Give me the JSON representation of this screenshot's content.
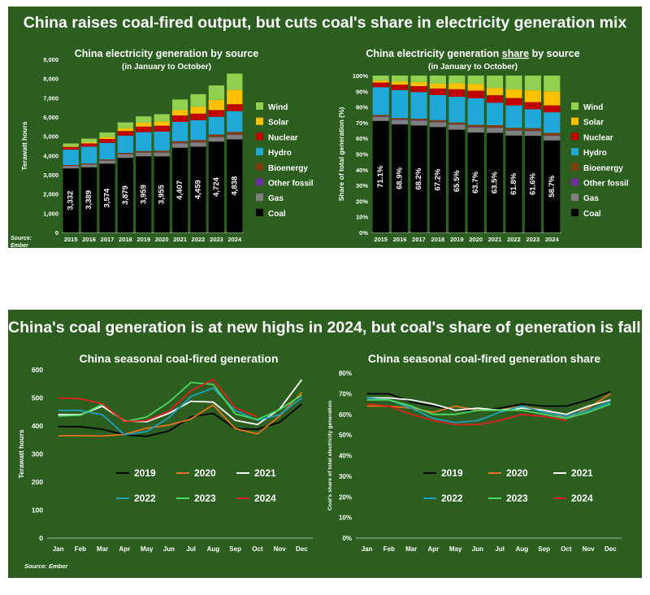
{
  "top": {
    "headline": "China raises coal-fired output, but cuts coal's share in electricity generation mix",
    "source": [
      "Source:",
      "Ember"
    ]
  },
  "bottom": {
    "headline": "China's coal generation is at new highs in 2024, but coal's share of generation is falling",
    "source": "Source: Ember"
  },
  "colors": {
    "background": "#2b5e1f",
    "Coal": "#000000",
    "Gas": "#7f7f7f",
    "Other fossil": "#7030a0",
    "Bioenergy": "#843c0c",
    "Hydro": "#1fa8d8",
    "Nuclear": "#c00000",
    "Solar": "#ffc000",
    "Wind": "#92d050",
    "2019": "#000000",
    "2020": "#e3731e",
    "2021": "#ffffff",
    "2022": "#1fa0c0",
    "2023": "#4cd964",
    "2024": "#e02020"
  },
  "chart_data": [
    {
      "type": "bar",
      "stacked": true,
      "title": "China electricity generation by source",
      "subtitle": "(in January to October)",
      "ylabel": "Terawatt hours",
      "xlabel": "",
      "ylim": [
        0,
        9000
      ],
      "yticks": [
        "0",
        "1,000",
        "2,000",
        "3,000",
        "4,000",
        "5,000",
        "6,000",
        "7,000",
        "8,000",
        "9,000"
      ],
      "categories": [
        "2015",
        "2016",
        "2017",
        "2018",
        "2019",
        "2020",
        "2021",
        "2022",
        "2023",
        "2024"
      ],
      "legend_position": "right",
      "legend": [
        "Wind",
        "Solar",
        "Nuclear",
        "Hydro",
        "Bioenergy",
        "Other fossil",
        "Gas",
        "Coal"
      ],
      "series": [
        {
          "name": "Coal",
          "values": [
            3332,
            3389,
            3574,
            3879,
            3959,
            3955,
            4407,
            4459,
            4724,
            4838
          ],
          "labels": [
            "3,332",
            "3,389",
            "3,574",
            "3,879",
            "3,959",
            "3,955",
            "4,407",
            "4,459",
            "4,724",
            "4,838"
          ]
        },
        {
          "name": "Gas",
          "values": [
            120,
            140,
            160,
            180,
            190,
            200,
            220,
            220,
            230,
            240
          ]
        },
        {
          "name": "Other fossil",
          "values": [
            15,
            15,
            15,
            15,
            15,
            15,
            20,
            20,
            20,
            20
          ]
        },
        {
          "name": "Bioenergy",
          "values": [
            40,
            45,
            50,
            60,
            70,
            80,
            100,
            110,
            120,
            130
          ]
        },
        {
          "name": "Hydro",
          "values": [
            800,
            870,
            860,
            900,
            980,
            1000,
            1000,
            1030,
            920,
            1080
          ]
        },
        {
          "name": "Nuclear",
          "values": [
            140,
            170,
            200,
            240,
            290,
            300,
            335,
            340,
            350,
            360
          ]
        },
        {
          "name": "Solar",
          "values": [
            30,
            60,
            100,
            150,
            200,
            230,
            280,
            360,
            530,
            740
          ]
        },
        {
          "name": "Wind",
          "values": [
            150,
            190,
            240,
            300,
            330,
            370,
            550,
            650,
            750,
            850
          ]
        }
      ]
    },
    {
      "type": "bar",
      "stacked": true,
      "title": "China electricity generation share by source",
      "subtitle": "(in January to October)",
      "ylabel": "Share of total generation (%)",
      "xlabel": "",
      "ylim": [
        0,
        100
      ],
      "yticks": [
        "0%",
        "10%",
        "20%",
        "30%",
        "40%",
        "50%",
        "60%",
        "70%",
        "80%",
        "90%",
        "100%"
      ],
      "categories": [
        "2015",
        "2016",
        "2017",
        "2018",
        "2019",
        "2020",
        "2021",
        "2022",
        "2023",
        "2024"
      ],
      "legend_position": "right",
      "legend": [
        "Wind",
        "Solar",
        "Nuclear",
        "Hydro",
        "Bioenergy",
        "Other fossil",
        "Gas",
        "Coal"
      ],
      "series": [
        {
          "name": "Coal",
          "values": [
            71.1,
            68.9,
            68.2,
            67.2,
            65.5,
            63.7,
            63.5,
            61.8,
            61.6,
            58.7
          ],
          "labels": [
            "71.1%",
            "68.9%",
            "68.2%",
            "67.2%",
            "65.5%",
            "63.7%",
            "63.5%",
            "61.8%",
            "61.6%",
            "58.7%"
          ]
        },
        {
          "name": "Gas",
          "values": [
            2.6,
            2.8,
            3.0,
            3.1,
            3.2,
            3.3,
            3.2,
            3.1,
            3.0,
            2.9
          ]
        },
        {
          "name": "Other fossil",
          "values": [
            0.3,
            0.3,
            0.3,
            0.3,
            0.3,
            0.3,
            0.3,
            0.3,
            0.3,
            0.3
          ]
        },
        {
          "name": "Bioenergy",
          "values": [
            0.9,
            0.9,
            1.0,
            1.0,
            1.1,
            1.3,
            1.4,
            1.5,
            1.6,
            1.6
          ]
        },
        {
          "name": "Hydro",
          "values": [
            17.7,
            17.9,
            17.0,
            16.0,
            16.4,
            16.9,
            14.3,
            14.3,
            12.0,
            13.1
          ]
        },
        {
          "name": "Nuclear",
          "values": [
            3.0,
            3.4,
            3.8,
            4.2,
            4.8,
            4.9,
            4.8,
            4.7,
            4.6,
            4.4
          ]
        },
        {
          "name": "Solar",
          "values": [
            1.2,
            1.9,
            2.6,
            3.2,
            3.8,
            4.2,
            4.5,
            5.5,
            7.5,
            9.0
          ]
        },
        {
          "name": "Wind",
          "values": [
            3.2,
            3.9,
            4.1,
            5.0,
            4.9,
            5.4,
            8.0,
            8.8,
            9.4,
            10.0
          ]
        }
      ]
    },
    {
      "type": "line",
      "title": "China seasonal coal-fired generation",
      "ylabel": "Terawatt hours",
      "xlabel": "",
      "ylim": [
        0,
        600
      ],
      "yticks": [
        "0",
        "100",
        "200",
        "300",
        "400",
        "500",
        "600"
      ],
      "categories": [
        "Jan",
        "Feb",
        "Mar",
        "Apr",
        "May",
        "Jun",
        "Jul",
        "Aug",
        "Sep",
        "Oct",
        "Nov",
        "Dec"
      ],
      "legend_position": "bottom",
      "series": [
        {
          "name": "2019",
          "values": [
            398,
            397,
            388,
            368,
            363,
            382,
            433,
            445,
            390,
            388,
            413,
            478
          ]
        },
        {
          "name": "2020",
          "values": [
            365,
            365,
            364,
            370,
            392,
            403,
            425,
            475,
            390,
            372,
            435,
            520
          ]
        },
        {
          "name": "2021",
          "values": [
            440,
            440,
            470,
            418,
            415,
            445,
            488,
            485,
            420,
            405,
            460,
            565
          ]
        },
        {
          "name": "2022",
          "values": [
            455,
            455,
            440,
            368,
            380,
            430,
            505,
            535,
            455,
            420,
            440,
            500
          ]
        },
        {
          "name": "2023",
          "values": [
            435,
            438,
            477,
            415,
            432,
            485,
            555,
            548,
            443,
            423,
            458,
            510
          ]
        },
        {
          "name": "2024",
          "values": [
            500,
            497,
            479,
            416,
            419,
            452,
            525,
            566,
            465,
            432,
            null,
            null
          ]
        }
      ]
    },
    {
      "type": "line",
      "title": "China seasonal coal-fired generation share",
      "ylabel": "Coal's share of total electricity generation",
      "xlabel": "",
      "ylim": [
        0,
        80
      ],
      "yticks": [
        "0%",
        "10%",
        "20%",
        "30%",
        "40%",
        "50%",
        "60%",
        "70%",
        "80%"
      ],
      "categories": [
        "Jan",
        "Feb",
        "Mar",
        "Apr",
        "May",
        "Jun",
        "Jul",
        "Aug",
        "Sep",
        "Oct",
        "Nov",
        "Dec"
      ],
      "legend_position": "bottom",
      "series": [
        {
          "name": "2019",
          "values": [
            70,
            70,
            66,
            64,
            62,
            62,
            63,
            65,
            64,
            64,
            67,
            71
          ]
        },
        {
          "name": "2020",
          "values": [
            64,
            64,
            63,
            61,
            64,
            62,
            62,
            64,
            62,
            58,
            63,
            70
          ]
        },
        {
          "name": "2021",
          "values": [
            68,
            68,
            67,
            65,
            62,
            63,
            62,
            63,
            62,
            60,
            64,
            67
          ]
        },
        {
          "name": "2022",
          "values": [
            68,
            67,
            63,
            58,
            56,
            57,
            61,
            64,
            61,
            59,
            62,
            66
          ]
        },
        {
          "name": "2023",
          "values": [
            67,
            67,
            64,
            60,
            60,
            62,
            62,
            62,
            60,
            58,
            61,
            65
          ]
        },
        {
          "name": "2024",
          "values": [
            65,
            64,
            60,
            57,
            55,
            55,
            57,
            60,
            59,
            57,
            null,
            null
          ]
        }
      ]
    }
  ]
}
